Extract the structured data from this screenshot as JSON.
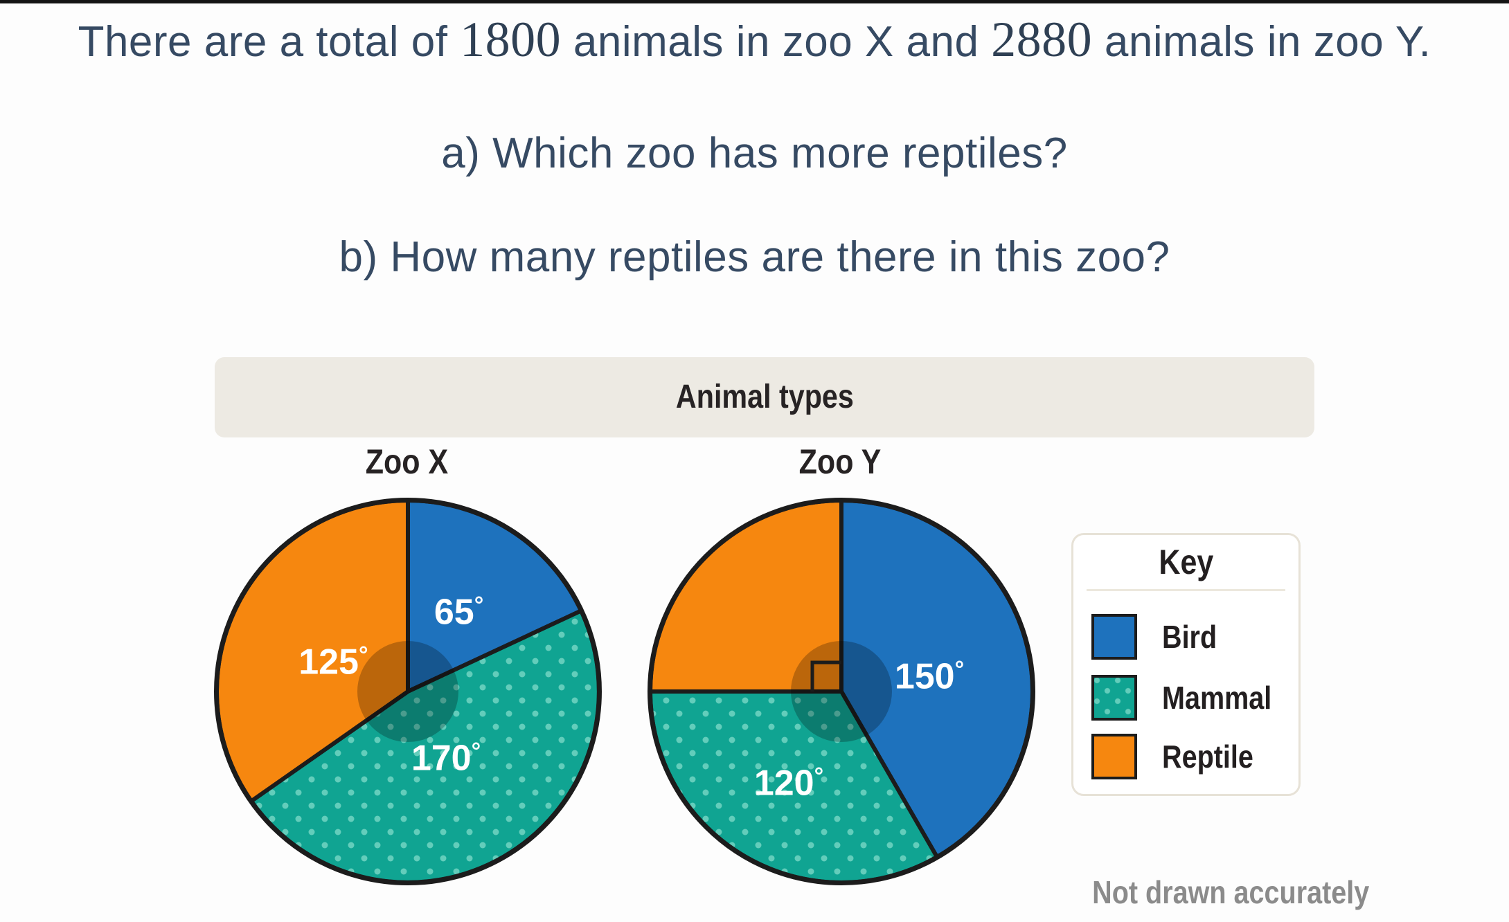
{
  "page": {
    "intro": {
      "part1": "There are a total of ",
      "zoo_x_total": "1800",
      "part2": " animals in zoo X and ",
      "zoo_y_total": "2880",
      "part3": " animals in zoo Y."
    },
    "question_a": "a) Which zoo has more reptiles?",
    "question_b": "b) How many reptiles are there in this zoo?",
    "note": "Not drawn accurately"
  },
  "chart_data": {
    "type": "pie",
    "title": "Animal types",
    "unit": "degrees",
    "degree_symbol": "°",
    "legend": {
      "title": "Key",
      "position": "right",
      "entries": [
        {
          "label": "Bird",
          "color": "#1e72bd",
          "pattern": "solid"
        },
        {
          "label": "Mammal",
          "color": "#10a492",
          "pattern": "dots"
        },
        {
          "label": "Reptile",
          "color": "#f6870f",
          "pattern": "solid"
        }
      ]
    },
    "pies": [
      {
        "name": "Zoo X",
        "total_animals": 1800,
        "slices": [
          {
            "category": "Bird",
            "degrees": 65,
            "label": "65°",
            "label_r": 137
          },
          {
            "category": "Mammal",
            "degrees": 170,
            "label": "170°",
            "label_r": 110
          },
          {
            "category": "Reptile",
            "degrees": 125,
            "label": "125°",
            "label_r": 116,
            "label_angle": 292
          }
        ]
      },
      {
        "name": "Zoo Y",
        "total_animals": 2880,
        "slices": [
          {
            "category": "Bird",
            "degrees": 150,
            "label": "150°",
            "label_r": 129,
            "label_angle": 80
          },
          {
            "category": "Mammal",
            "degrees": 120,
            "label": "120°",
            "label_r": 152
          },
          {
            "category": "Reptile",
            "degrees": 90,
            "label": null,
            "right_angle_marker": true
          }
        ]
      }
    ],
    "note": "Not drawn accurately",
    "colors": {
      "outline": "#1c1c1c",
      "mammal_dot": "#63cdbb",
      "center_overlay": "rgba(0,0,0,0.24)",
      "band_bg": "#edeae3",
      "white": "#ffffff"
    }
  }
}
